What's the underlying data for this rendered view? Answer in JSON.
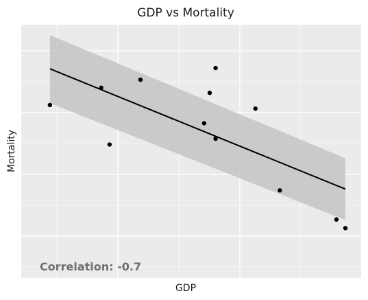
{
  "chart_data": {
    "type": "scatter",
    "title": "GDP vs Mortality",
    "xlabel": "GDP",
    "ylabel": "Mortality",
    "xlim": [
      0,
      100
    ],
    "ylim": [
      0,
      100
    ],
    "grid": true,
    "x_ticks_labeled": false,
    "y_ticks_labeled": false,
    "points": [
      {
        "x": 4.4,
        "y": 68.3
      },
      {
        "x": 21.0,
        "y": 75.1
      },
      {
        "x": 23.7,
        "y": 52.7
      },
      {
        "x": 33.7,
        "y": 78.3
      },
      {
        "x": 54.3,
        "y": 61.1
      },
      {
        "x": 56.1,
        "y": 73.1
      },
      {
        "x": 58.0,
        "y": 55.0
      },
      {
        "x": 58.0,
        "y": 82.9
      },
      {
        "x": 70.9,
        "y": 66.9
      },
      {
        "x": 78.8,
        "y": 34.6
      },
      {
        "x": 97.1,
        "y": 23.1
      },
      {
        "x": 100.0,
        "y": 19.7
      }
    ],
    "trend_line": {
      "x": [
        4.4,
        100.0
      ],
      "y": [
        82.6,
        35.1
      ]
    },
    "confidence_band": {
      "x": [
        4.4,
        100.0
      ],
      "upper": [
        95.9,
        47.3
      ],
      "lower": [
        69.0,
        22.9
      ]
    },
    "annotation": "Correlation: -0.7",
    "colors": {
      "panel": "#ebebeb",
      "grid": "#ffffff",
      "point": "#000000",
      "trend": "#000000",
      "band": "#c4c4c4",
      "annotation": "#6f6f6f"
    }
  }
}
